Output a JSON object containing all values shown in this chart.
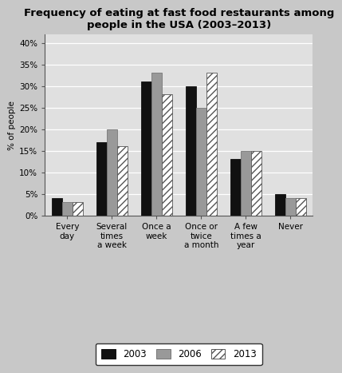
{
  "title": "Frequency of eating at fast food restaurants among\npeople in the USA (2003–2013)",
  "categories": [
    "Every\nday",
    "Several\ntimes\na week",
    "Once a\nweek",
    "Once or\ntwice\na month",
    "A few\ntimes a\nyear",
    "Never"
  ],
  "series": {
    "2003": [
      4,
      17,
      31,
      30,
      13,
      5
    ],
    "2006": [
      3,
      20,
      33,
      25,
      15,
      4
    ],
    "2013": [
      3,
      16,
      28,
      33,
      15,
      4
    ]
  },
  "bar_colors": {
    "2003": "#111111",
    "2006": "#999999",
    "2013": "#ffffff"
  },
  "bar_edgecolors": {
    "2003": "#111111",
    "2006": "#777777",
    "2013": "#555555"
  },
  "hatch": {
    "2003": "",
    "2006": "",
    "2013": "////"
  },
  "ylabel": "% of people",
  "yticks": [
    0,
    5,
    10,
    15,
    20,
    25,
    30,
    35,
    40
  ],
  "ytick_labels": [
    "0%",
    "5%",
    "10%",
    "15%",
    "20%",
    "25%",
    "30%",
    "35%",
    "40%"
  ],
  "ylim": [
    0,
    42
  ],
  "background_color": "#c8c8c8",
  "plot_background_color": "#e0e0e0",
  "bar_width": 0.23,
  "title_fontsize": 9.5,
  "label_fontsize": 7.5,
  "tick_fontsize": 7.5,
  "legend_fontsize": 8.5
}
